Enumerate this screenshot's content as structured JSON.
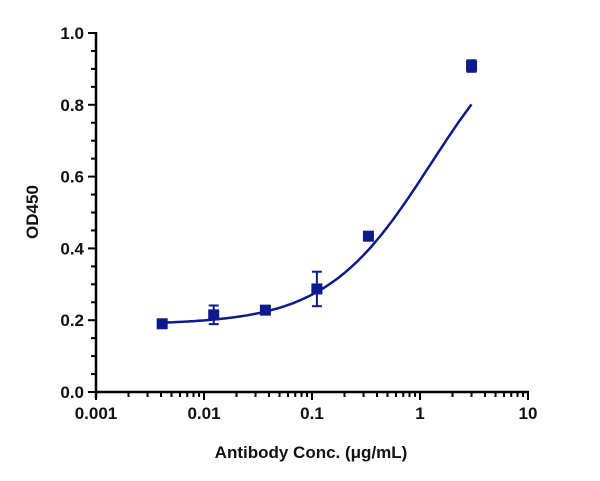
{
  "chart_data": {
    "type": "scatter",
    "title": "",
    "xlabel": "Antibody Conc. (μg/mL)",
    "ylabel": "OD450",
    "xscale": "log",
    "xlim": [
      0.001,
      10
    ],
    "ylim": [
      0.0,
      1.0
    ],
    "x_ticks": [
      "0.001",
      "0.01",
      "0.1",
      "1",
      "10"
    ],
    "y_ticks": [
      "0.0",
      "0.2",
      "0.4",
      "0.6",
      "0.8",
      "1.0"
    ],
    "grid": false,
    "legend": null,
    "series": [
      {
        "name": "OD450",
        "marker": "square",
        "color": "#0d1a8c",
        "fit": "4PL sigmoidal curve",
        "x": [
          0.0041,
          0.0123,
          0.037,
          0.111,
          0.333,
          3.0
        ],
        "y": [
          0.19,
          0.215,
          0.228,
          0.287,
          0.434,
          0.908
        ],
        "error": [
          0.0,
          0.026,
          0.0,
          0.048,
          0.0,
          0.016
        ]
      }
    ]
  }
}
